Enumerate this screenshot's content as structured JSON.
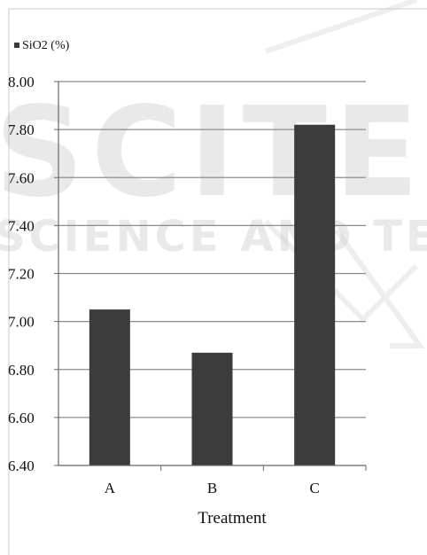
{
  "chart_data": {
    "type": "bar",
    "categories": [
      "A",
      "B",
      "C"
    ],
    "values": [
      7.05,
      6.87,
      7.82
    ],
    "series": [
      {
        "name": "SiO2 (%)",
        "values": [
          7.05,
          6.87,
          7.82
        ],
        "color": "#3b3b3b"
      }
    ],
    "xlabel": "Treatment",
    "ylabel": "",
    "ylim": [
      6.4,
      8.0
    ],
    "yticks": [
      "6.40",
      "6.60",
      "6.80",
      "7.00",
      "7.20",
      "7.40",
      "7.60",
      "7.80",
      "8.00"
    ],
    "grid": true,
    "legend": {
      "label": "SiO2 (%)",
      "placement": "top-left"
    }
  },
  "watermark": {
    "line1": "SCITE",
    "line2": "SCIENCE AND TECH"
  },
  "colors": {
    "bar": "#3b3b3b",
    "grid": "#8c8c8c",
    "axis": "#666666",
    "text": "#111111"
  }
}
